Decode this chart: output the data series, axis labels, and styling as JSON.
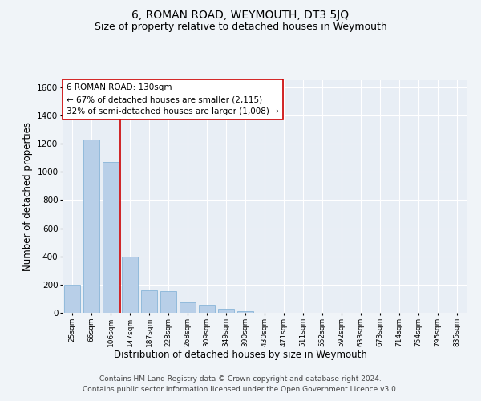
{
  "title": "6, ROMAN ROAD, WEYMOUTH, DT3 5JQ",
  "subtitle": "Size of property relative to detached houses in Weymouth",
  "xlabel": "Distribution of detached houses by size in Weymouth",
  "ylabel": "Number of detached properties",
  "categories": [
    "25sqm",
    "66sqm",
    "106sqm",
    "147sqm",
    "187sqm",
    "228sqm",
    "268sqm",
    "309sqm",
    "349sqm",
    "390sqm",
    "430sqm",
    "471sqm",
    "511sqm",
    "552sqm",
    "592sqm",
    "633sqm",
    "673sqm",
    "714sqm",
    "754sqm",
    "795sqm",
    "835sqm"
  ],
  "values": [
    200,
    1230,
    1070,
    400,
    160,
    155,
    75,
    55,
    30,
    10,
    0,
    0,
    0,
    0,
    0,
    0,
    0,
    0,
    0,
    0,
    0
  ],
  "bar_color": "#b8cfe8",
  "bar_edge_color": "#7aadd4",
  "vline_x": 2.5,
  "vline_color": "#cc0000",
  "ylim": [
    0,
    1650
  ],
  "yticks": [
    0,
    200,
    400,
    600,
    800,
    1000,
    1200,
    1400,
    1600
  ],
  "annotation_box_text": "6 ROMAN ROAD: 130sqm\n← 67% of detached houses are smaller (2,115)\n32% of semi-detached houses are larger (1,008) →",
  "footer_line1": "Contains HM Land Registry data © Crown copyright and database right 2024.",
  "footer_line2": "Contains public sector information licensed under the Open Government Licence v3.0.",
  "bg_color": "#f0f4f8",
  "plot_bg_color": "#e8eef5",
  "title_fontsize": 10,
  "subtitle_fontsize": 9,
  "xlabel_fontsize": 8.5,
  "ylabel_fontsize": 8.5,
  "annotation_fontsize": 7.5,
  "footer_fontsize": 6.5
}
